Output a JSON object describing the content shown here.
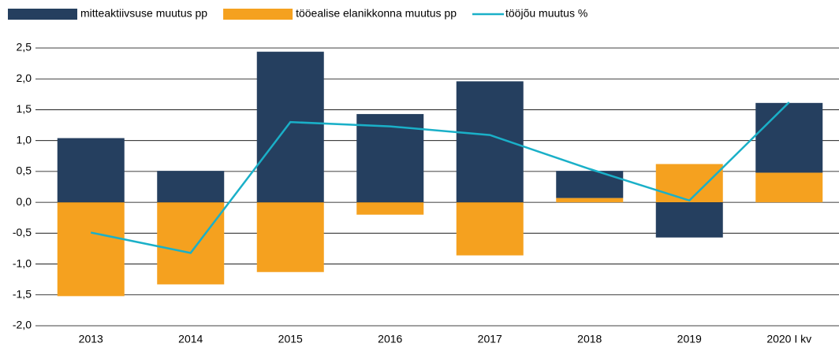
{
  "chart_data": {
    "type": "bar",
    "categories": [
      "2013",
      "2014",
      "2015",
      "2016",
      "2017",
      "2018",
      "2019",
      "2020 I kv"
    ],
    "series": [
      {
        "name": "mitteaktiivsuse muutus pp",
        "color": "#253f5f",
        "type": "bar",
        "values": [
          1.04,
          0.51,
          2.44,
          1.43,
          1.96,
          0.44,
          -0.57,
          1.13
        ]
      },
      {
        "name": "tööealise elanikkonna muutus pp",
        "color": "#f5a11f",
        "type": "bar",
        "values": [
          -1.52,
          -1.33,
          -1.13,
          -0.2,
          -0.86,
          0.07,
          0.62,
          0.48
        ]
      },
      {
        "name": "tööjõu muutus %",
        "color": "#1ab0c8",
        "type": "line",
        "values": [
          -0.49,
          -0.82,
          1.3,
          1.23,
          1.09,
          0.54,
          0.03,
          1.62
        ]
      }
    ],
    "stacked": true,
    "ylim": [
      -2,
      2.5
    ],
    "yticks": [
      {
        "value": -2,
        "label": "-2,0"
      },
      {
        "value": -1.5,
        "label": "-1,5"
      },
      {
        "value": -1,
        "label": "-1,0"
      },
      {
        "value": -0.5,
        "label": "-0,5"
      },
      {
        "value": 0,
        "label": "0,0"
      },
      {
        "value": 0.5,
        "label": "0,5"
      },
      {
        "value": 1,
        "label": "1,0"
      },
      {
        "value": 1.5,
        "label": "1,5"
      },
      {
        "value": 2,
        "label": "2,0"
      },
      {
        "value": 2.5,
        "label": "2,5"
      }
    ],
    "grid": true,
    "legend": "top"
  }
}
